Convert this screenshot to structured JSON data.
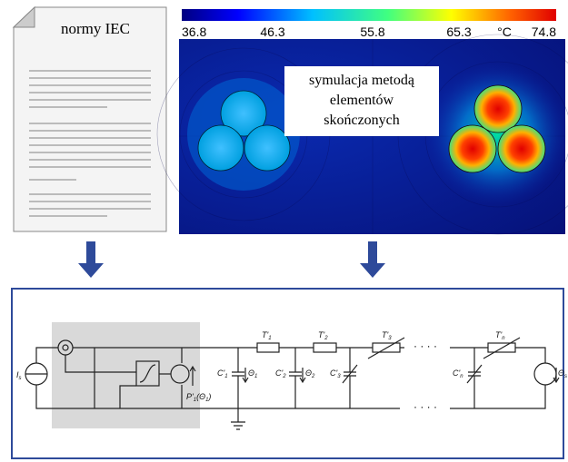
{
  "document": {
    "title": "normy IEC"
  },
  "simulation": {
    "colorbar": {
      "ticks": [
        36.8,
        46.3,
        55.8,
        65.3,
        74.8
      ],
      "unit": "°C"
    },
    "label": [
      "symulacja metodą",
      "elementów",
      "skończonych"
    ]
  },
  "circuit": {
    "labels": {
      "source": [
        "I",
        "s"
      ],
      "heat": [
        "P'",
        "1",
        "(Θ",
        "1",
        ")"
      ],
      "c1": [
        "C'",
        "1"
      ],
      "theta1": [
        "Θ",
        "1"
      ],
      "t1": [
        "T'",
        "1"
      ],
      "c2": [
        "C'",
        "2"
      ],
      "theta2": [
        "Θ",
        "2"
      ],
      "t2": [
        "T'",
        "2"
      ],
      "c3": [
        "C'",
        "3"
      ],
      "t3": [
        "T'",
        "3"
      ],
      "cn": [
        "C'",
        "n"
      ],
      "tn": [
        "T'",
        "n"
      ],
      "thetas": [
        "Θ",
        "s"
      ]
    },
    "dots": "· · · ·"
  }
}
